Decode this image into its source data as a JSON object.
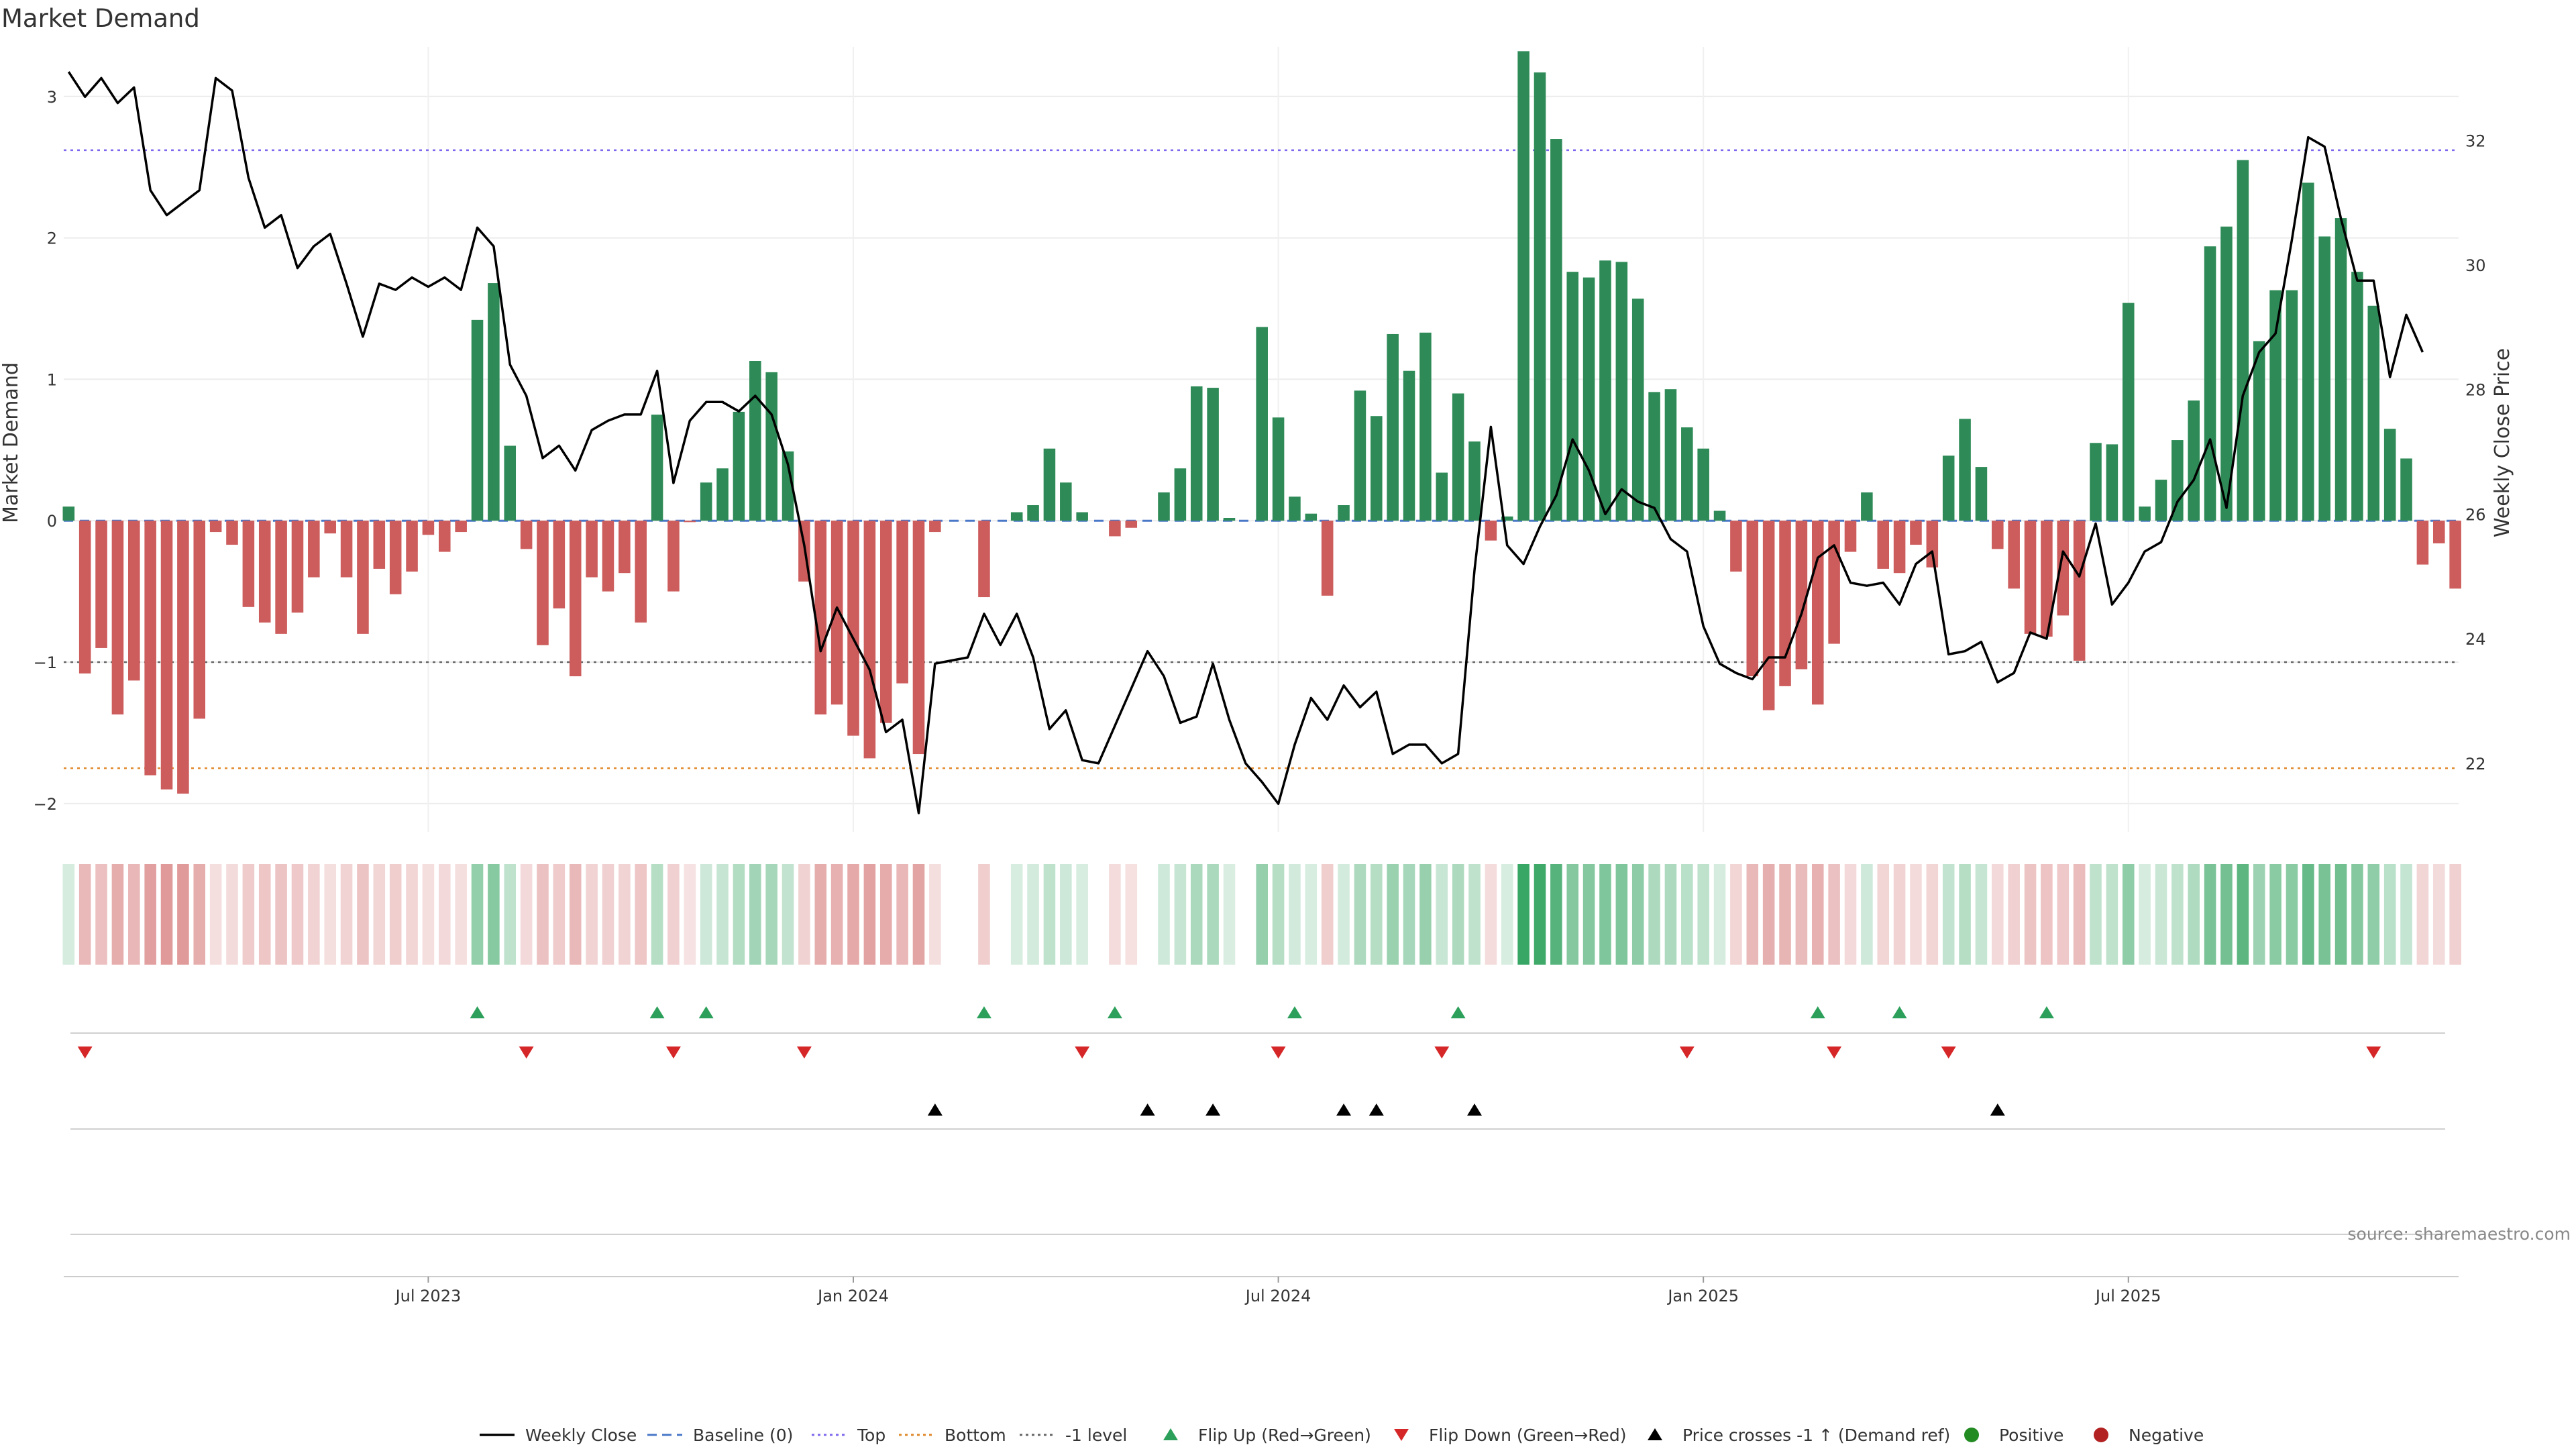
{
  "chart_data": {
    "type": "bar",
    "title": "Market Demand",
    "ylabel_left": "Market Demand",
    "ylabel_right": "Weekly Close Price",
    "source": "source: sharemaestro.com",
    "ylim_left": [
      -2.2,
      3.35
    ],
    "ylim_right": [
      20.9,
      33.5
    ],
    "left_ticks": [
      -2,
      -1,
      0,
      1,
      2,
      3
    ],
    "right_ticks": [
      22,
      24,
      26,
      28,
      30,
      32
    ],
    "x_ticks": [
      {
        "label": "Jul 2023",
        "week": 22
      },
      {
        "label": "Jan 2024",
        "week": 48
      },
      {
        "label": "Jul 2024",
        "week": 74
      },
      {
        "label": "Jan 2025",
        "week": 100
      },
      {
        "label": "Jul 2025",
        "week": 126
      }
    ],
    "reference_lines": {
      "top": 2.62,
      "bottom": -1.75,
      "minus_one": -1,
      "baseline": 0
    },
    "colors": {
      "positive": "#2e8b57",
      "negative": "#cd5c5c",
      "price": "#000000",
      "top": "#7b68ee",
      "bottom": "#e08a2c",
      "minus_one": "#666666",
      "baseline": "#4a78c8",
      "flip_up": "#2ca05a",
      "flip_down": "#d62728",
      "cross": "#000000",
      "pos_dot": "#228b22",
      "neg_dot": "#b22222"
    },
    "demand": [
      0.1,
      -1.08,
      -0.9,
      -1.37,
      -1.13,
      -1.8,
      -1.9,
      -1.93,
      -1.4,
      -0.08,
      -0.17,
      -0.61,
      -0.72,
      -0.8,
      -0.65,
      -0.4,
      -0.09,
      -0.4,
      -0.8,
      -0.34,
      -0.52,
      -0.36,
      -0.1,
      -0.22,
      -0.08,
      1.42,
      1.68,
      0.53,
      -0.2,
      -0.88,
      -0.62,
      -1.1,
      -0.4,
      -0.5,
      -0.37,
      -0.72,
      0.75,
      -0.5,
      -0.01,
      0.27,
      0.37,
      0.77,
      1.13,
      1.05,
      0.49,
      -0.43,
      -1.37,
      -1.3,
      -1.52,
      -1.68,
      -1.43,
      -1.15,
      -1.65,
      -0.08,
      0,
      0,
      -0.54,
      0,
      0.06,
      0.11,
      0.51,
      0.27,
      0.06,
      0,
      -0.11,
      -0.05,
      0,
      0.2,
      0.37,
      0.95,
      0.94,
      0.02,
      0,
      1.37,
      0.73,
      0.17,
      0.05,
      -0.53,
      0.11,
      0.92,
      0.74,
      1.32,
      1.06,
      1.33,
      0.34,
      0.9,
      0.56,
      -0.14,
      0.03,
      3.32,
      3.17,
      2.7,
      1.76,
      1.72,
      1.84,
      1.83,
      1.57,
      0.91,
      0.93,
      0.66,
      0.51,
      0.07,
      -0.36,
      -1.1,
      -1.34,
      -1.17,
      -1.05,
      -1.3,
      -0.87,
      -0.22,
      0.2,
      -0.34,
      -0.37,
      -0.17,
      -0.33,
      0.46,
      0.72,
      0.38,
      -0.2,
      -0.48,
      -0.8,
      -0.82,
      -0.67,
      -0.99,
      0.55,
      0.54,
      1.54,
      0.1,
      0.29,
      0.57,
      0.85,
      1.94,
      2.08,
      2.55,
      1.27,
      1.63,
      1.63,
      2.39,
      2.01,
      2.14,
      1.76,
      1.52,
      0.65,
      0.44,
      -0.31,
      -0.16,
      -0.48
    ],
    "price": [
      33.1,
      32.7,
      33.0,
      32.6,
      32.85,
      31.2,
      30.8,
      31.0,
      31.2,
      33.0,
      32.8,
      31.4,
      30.6,
      30.8,
      29.95,
      30.3,
      30.5,
      29.7,
      28.85,
      29.7,
      29.6,
      29.8,
      29.65,
      29.8,
      29.6,
      30.6,
      30.3,
      28.4,
      27.9,
      26.9,
      27.1,
      26.7,
      27.35,
      27.5,
      27.6,
      27.6,
      28.3,
      26.5,
      27.5,
      27.8,
      27.8,
      27.65,
      27.9,
      27.6,
      26.8,
      25.5,
      23.8,
      24.5,
      24.0,
      23.5,
      22.5,
      22.7,
      21.2,
      23.6,
      23.65,
      23.7,
      24.4,
      23.9,
      24.4,
      23.7,
      22.55,
      22.85,
      22.05,
      22.0,
      22.6,
      23.2,
      23.8,
      23.4,
      22.65,
      22.75,
      23.6,
      22.7,
      22.0,
      21.7,
      21.35,
      22.3,
      23.05,
      22.7,
      23.25,
      22.9,
      23.15,
      22.15,
      22.3,
      22.3,
      22.0,
      22.15,
      25.1,
      27.4,
      25.5,
      25.2,
      25.8,
      26.3,
      27.2,
      26.7,
      26.0,
      26.4,
      26.2,
      26.1,
      25.6,
      25.4,
      24.2,
      23.6,
      23.45,
      23.35,
      23.7,
      23.7,
      24.4,
      25.3,
      25.5,
      24.9,
      24.85,
      24.9,
      24.55,
      25.2,
      25.4,
      23.75,
      23.8,
      23.95,
      23.3,
      23.45,
      24.1,
      24.0,
      25.4,
      25.0,
      25.85,
      24.55,
      24.9,
      25.4,
      25.55,
      26.2,
      26.55,
      27.2,
      26.1,
      27.9,
      28.6,
      28.9,
      30.4,
      32.05,
      31.9,
      30.75,
      29.75,
      29.75,
      28.2,
      29.2,
      28.6
    ]
  },
  "legend": [
    {
      "label": "Weekly Close",
      "type": "line"
    },
    {
      "label": "Baseline (0)",
      "type": "dash"
    },
    {
      "label": "Top",
      "type": "dot-purple"
    },
    {
      "label": "Bottom",
      "type": "dot-orange"
    },
    {
      "label": "-1 level",
      "type": "dot-gray"
    },
    {
      "label": "Flip Up (Red→Green)",
      "type": "tri-up-green"
    },
    {
      "label": "Flip Down (Green→Red)",
      "type": "tri-down-red"
    },
    {
      "label": "Price crosses -1 ↑ (Demand ref)",
      "type": "tri-up-black"
    },
    {
      "label": "Positive",
      "type": "dot-green"
    },
    {
      "label": "Negative",
      "type": "dot-red"
    }
  ],
  "signals": {
    "flip_up_weeks": [
      25,
      36,
      39,
      56,
      64,
      75,
      85,
      107,
      112,
      121
    ],
    "flip_down_weeks": [
      1,
      28,
      37,
      45,
      62,
      74,
      84,
      99,
      108,
      115,
      141
    ],
    "cross_weeks": [
      53,
      66,
      70,
      78,
      80,
      86,
      118
    ]
  }
}
